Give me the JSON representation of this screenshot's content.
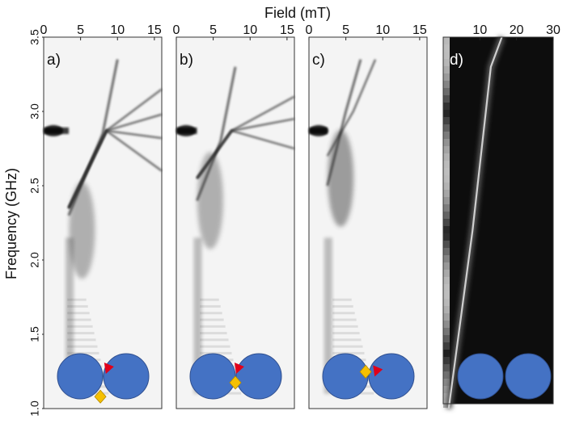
{
  "figure": {
    "top_label": "Field (mT)",
    "y_label": "Frequency (GHz)"
  },
  "chart_data": [
    {
      "type": "heatmap",
      "panel_label": "a)",
      "x_ticks": [
        0,
        5,
        10,
        15
      ],
      "xlim": [
        0,
        16
      ],
      "y_ticks": [
        1.0,
        1.5,
        2.0,
        2.5,
        3.0,
        3.5
      ],
      "ylim": [
        1.0,
        3.5
      ],
      "colormap": "grayscale-inverted",
      "features": {
        "flat_line_freq": 2.87,
        "fan_origin": [
          3.4,
          2.35
        ],
        "fan_lines": [
          [
            [
              3.4,
              2.35
            ],
            [
              8.5,
              2.87
            ],
            [
              16,
              3.15
            ]
          ],
          [
            [
              3.4,
              2.35
            ],
            [
              8.5,
              2.87
            ],
            [
              16,
              2.98
            ]
          ],
          [
            [
              3.4,
              2.35
            ],
            [
              8.5,
              2.87
            ],
            [
              16,
              2.82
            ]
          ],
          [
            [
              3.4,
              2.35
            ],
            [
              8.5,
              2.87
            ],
            [
              16,
              2.6
            ]
          ]
        ],
        "rising_line": [
          [
            3.4,
            2.3
          ],
          [
            8,
            2.85
          ],
          [
            10,
            3.35
          ]
        ]
      },
      "inset": {
        "marker_red": [
          0.54,
          0.34
        ],
        "marker_yellow": [
          0.48,
          0.95
        ]
      }
    },
    {
      "type": "heatmap",
      "panel_label": "b)",
      "x_ticks": [
        0,
        5,
        10,
        15
      ],
      "xlim": [
        0,
        16
      ],
      "y_ticks": [
        1.0,
        1.5,
        2.0,
        2.5,
        3.0,
        3.5
      ],
      "ylim": [
        1.0,
        3.5
      ],
      "colormap": "grayscale-inverted",
      "features": {
        "flat_line_freq": 2.87,
        "fan_origin": [
          2.8,
          2.55
        ],
        "fan_lines": [
          [
            [
              2.8,
              2.55
            ],
            [
              7.5,
              2.87
            ],
            [
              16,
              3.1
            ]
          ],
          [
            [
              2.8,
              2.55
            ],
            [
              7.5,
              2.87
            ],
            [
              16,
              2.95
            ]
          ],
          [
            [
              2.8,
              2.55
            ],
            [
              7.5,
              2.87
            ],
            [
              16,
              2.75
            ]
          ]
        ],
        "rising_line": [
          [
            2.8,
            2.4
          ],
          [
            6,
            2.8
          ],
          [
            8,
            3.3
          ]
        ]
      },
      "inset": {
        "marker_red": [
          0.52,
          0.34
        ],
        "marker_yellow": [
          0.5,
          0.64
        ]
      }
    },
    {
      "type": "heatmap",
      "panel_label": "c)",
      "x_ticks": [
        0,
        5,
        10,
        15
      ],
      "xlim": [
        0,
        16
      ],
      "y_ticks": [
        1.0,
        1.5,
        2.0,
        2.5,
        3.0,
        3.5
      ],
      "ylim": [
        1.0,
        3.5
      ],
      "colormap": "grayscale-inverted",
      "features": {
        "flat_line_freq": 2.87,
        "fan_origin": [
          2.5,
          2.7
        ],
        "fan_lines": [
          [
            [
              2.5,
              2.7
            ],
            [
              6,
              3.0
            ],
            [
              9,
              3.35
            ]
          ]
        ],
        "rising_line": [
          [
            2.5,
            2.5
          ],
          [
            5,
            3.0
          ],
          [
            7,
            3.35
          ]
        ]
      },
      "inset": {
        "marker_red": [
          0.57,
          0.4
        ],
        "marker_yellow": [
          0.48,
          0.4
        ]
      }
    },
    {
      "type": "heatmap",
      "panel_label": "d)",
      "x_ticks": [
        10,
        20,
        30
      ],
      "xlim": [
        0,
        30
      ],
      "y_ticks": [],
      "colormap": "grayscale",
      "features": {
        "bright_line": [
          [
            1.5,
            1.0
          ],
          [
            8,
            2.2
          ],
          [
            13,
            3.3
          ],
          [
            16,
            3.5
          ]
        ]
      },
      "inset": {}
    }
  ]
}
